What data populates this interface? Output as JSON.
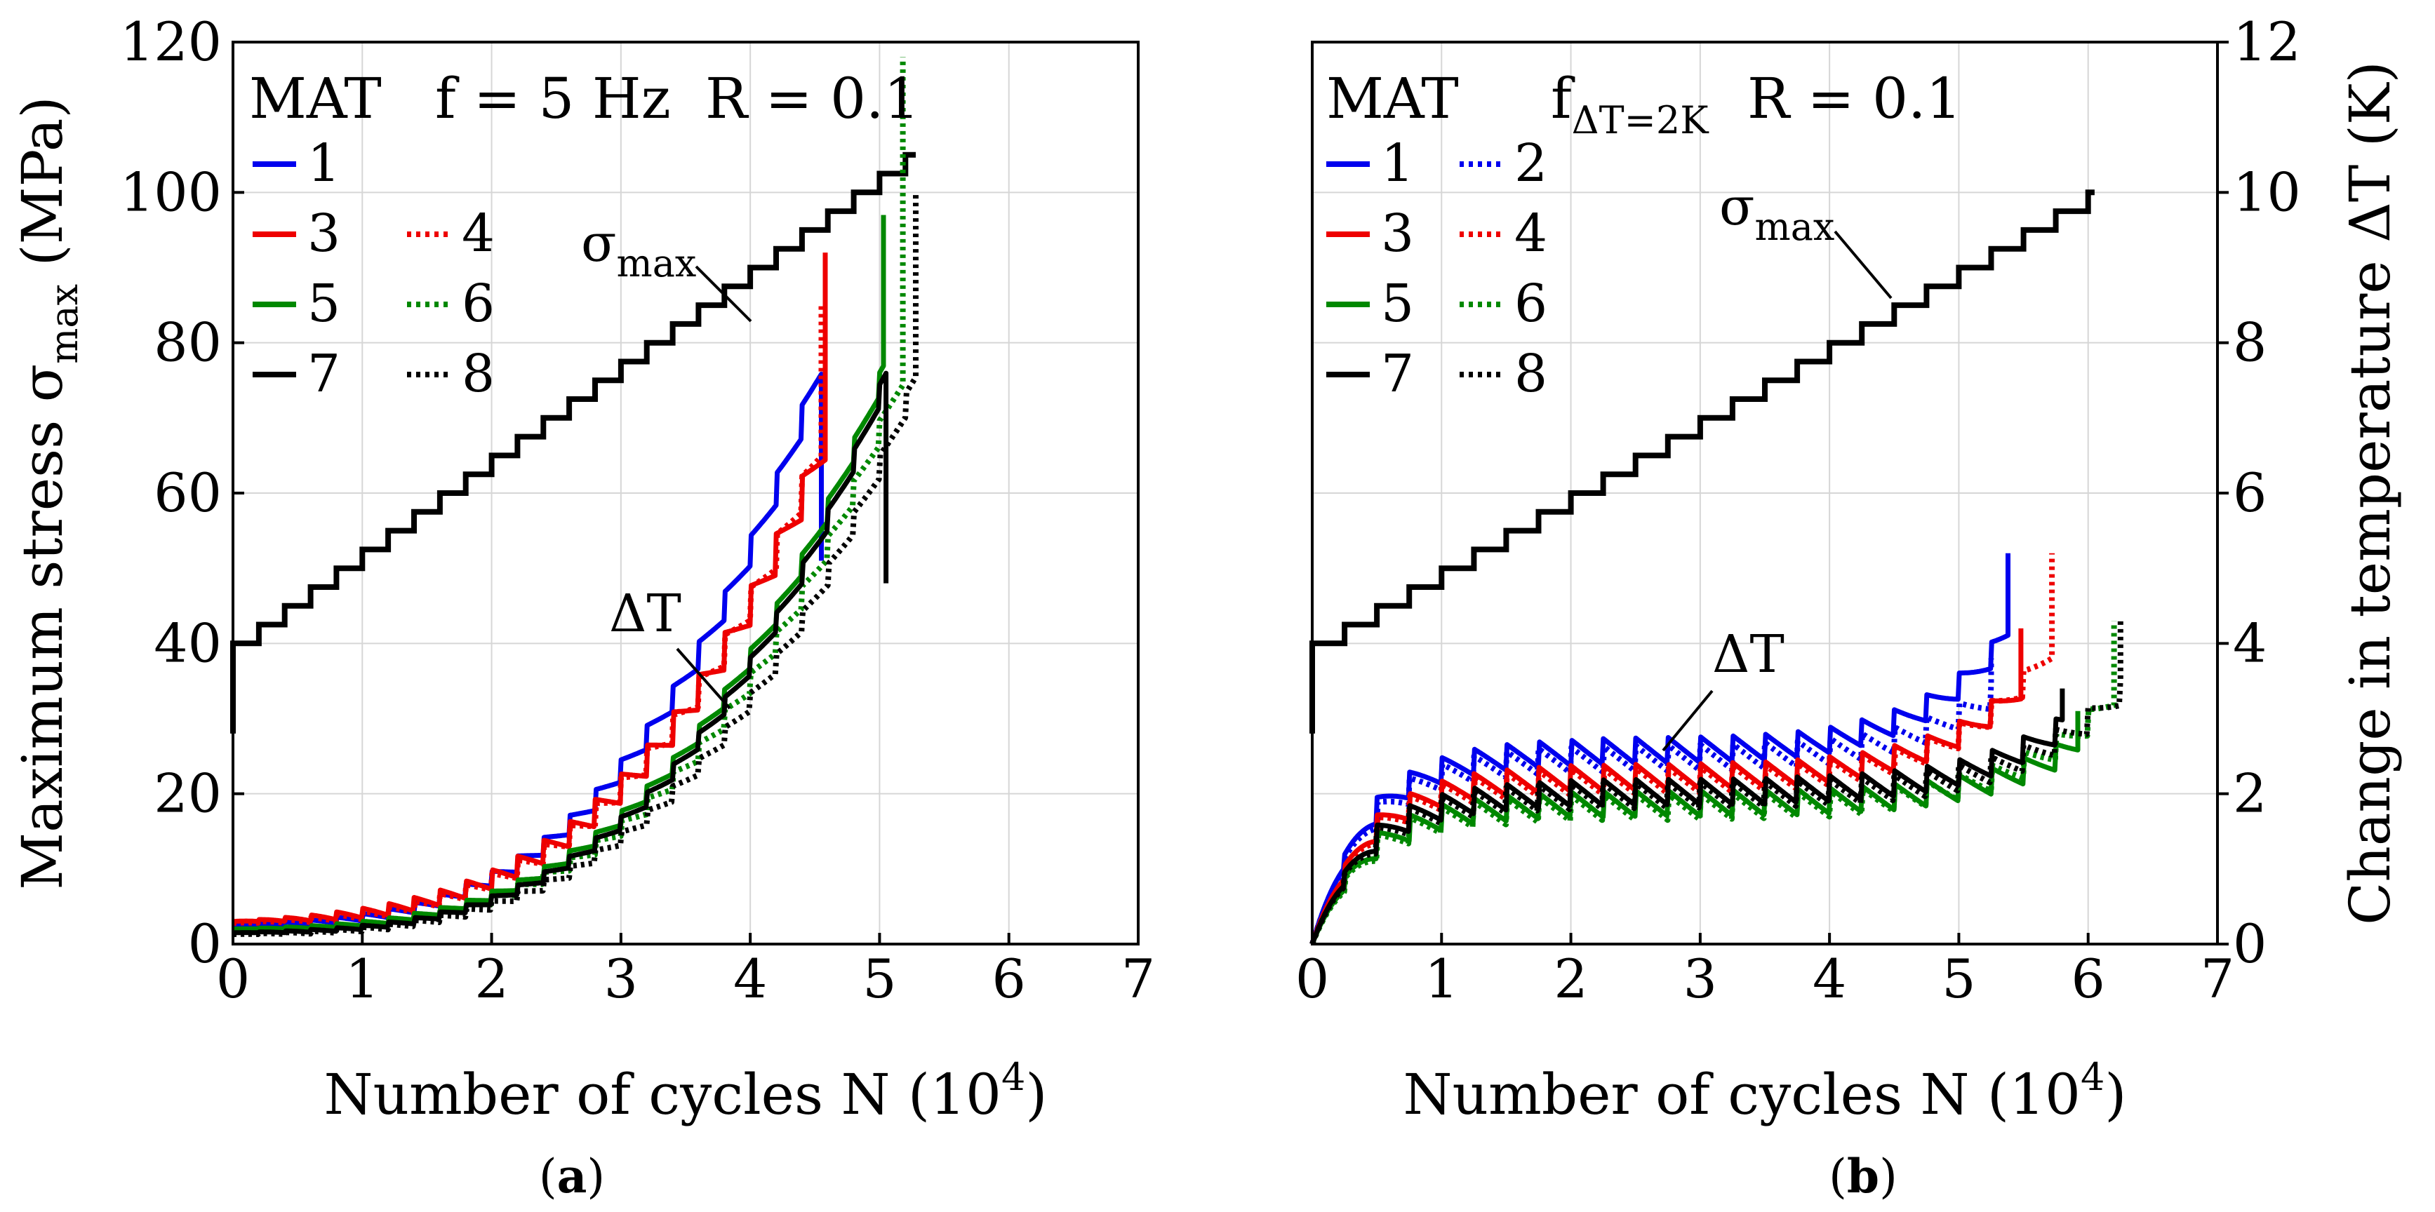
{
  "colors": {
    "1": "#0000ee",
    "2": "#0000ee",
    "3": "#ee0000",
    "4": "#ee0000",
    "5": "#008800",
    "6": "#008800",
    "7": "#000000",
    "8": "#000000"
  },
  "chart_data": [
    {
      "type": "line",
      "panel_label": "a",
      "legend_header": {
        "mat": "MAT",
        "f": "f = 5 Hz",
        "r": "R = 0.1"
      },
      "legend": [
        {
          "id": "1",
          "style": "solid"
        },
        {
          "id": "3",
          "style": "solid"
        },
        {
          "id": "4",
          "style": "dotted"
        },
        {
          "id": "5",
          "style": "solid"
        },
        {
          "id": "6",
          "style": "dotted"
        },
        {
          "id": "7",
          "style": "solid"
        },
        {
          "id": "8",
          "style": "dotted"
        }
      ],
      "xlabel": "Number of cycles N (10",
      "xlabel_sup": "4",
      "xlabel_end": ")",
      "ylabel": "Maximum stress σ",
      "ylabel_sub": "max",
      "ylabel_end": " (MPa)",
      "xlim": [
        0,
        7
      ],
      "ylim": [
        0,
        120
      ],
      "xticks": [
        "0",
        "1",
        "2",
        "3",
        "4",
        "5",
        "6",
        "7"
      ],
      "yticks": [
        "0",
        "20",
        "40",
        "60",
        "80",
        "100",
        "120"
      ],
      "annotations": {
        "sigma": "σ",
        "sigma_sub": "max",
        "dT": "ΔT"
      },
      "stress_steps": {
        "start": 40,
        "step": 2.5,
        "per_block": 0.2,
        "end_x": 5.28
      },
      "dT_end_scale": 10,
      "series": [
        {
          "name": "1",
          "style": "solid",
          "end": 4.55,
          "base": 2.5,
          "final": 51,
          "k": 1.9,
          "spike": 4.5
        },
        {
          "name": "3",
          "style": "solid",
          "end": 4.58,
          "base": 3.0,
          "final": 92,
          "k": 1.6,
          "spike": 6.0
        },
        {
          "name": "4",
          "style": "dotted",
          "end": 4.55,
          "base": 2.8,
          "final": 85,
          "k": 1.6,
          "spike": 5.0
        },
        {
          "name": "5",
          "style": "solid",
          "end": 5.03,
          "base": 2.0,
          "final": 97,
          "k": 1.9,
          "spike": 3.2
        },
        {
          "name": "6",
          "style": "dotted",
          "end": 5.18,
          "base": 1.8,
          "final": 118,
          "k": 1.9,
          "spike": 3.5
        },
        {
          "name": "7",
          "style": "solid",
          "end": 5.05,
          "base": 1.5,
          "final": 48,
          "k": 1.9,
          "spike": 3.0
        },
        {
          "name": "8",
          "style": "dotted",
          "end": 5.28,
          "base": 1.3,
          "final": 100,
          "k": 1.9,
          "spike": 3.2
        }
      ]
    },
    {
      "type": "line",
      "panel_label": "b",
      "legend_header": {
        "mat": "MAT",
        "f": "f",
        "f_sub": "ΔT=2K",
        "r": "R = 0.1"
      },
      "legend": [
        {
          "id": "1",
          "style": "solid"
        },
        {
          "id": "2",
          "style": "dotted"
        },
        {
          "id": "3",
          "style": "solid"
        },
        {
          "id": "4",
          "style": "dotted"
        },
        {
          "id": "5",
          "style": "solid"
        },
        {
          "id": "6",
          "style": "dotted"
        },
        {
          "id": "7",
          "style": "solid"
        },
        {
          "id": "8",
          "style": "dotted"
        }
      ],
      "xlabel": "Number of cycles N (10",
      "xlabel_sup": "4",
      "xlabel_end": ")",
      "ylabel": "Change in temperature ΔT (K)",
      "xlim": [
        0,
        7
      ],
      "ylim": [
        0,
        12
      ],
      "xticks": [
        "0",
        "1",
        "2",
        "3",
        "4",
        "5",
        "6",
        "7"
      ],
      "yticks": [
        "0",
        "2",
        "4",
        "6",
        "8",
        "10",
        "12"
      ],
      "annotations": {
        "sigma": "σ",
        "sigma_sub": "max",
        "dT": "ΔT"
      },
      "stress_steps": {
        "start": 4.0,
        "step": 0.25,
        "per_block": 0.25,
        "end_x": 6.05
      },
      "series": [
        {
          "name": "1",
          "style": "solid",
          "end": 5.38,
          "plateau": 2.4,
          "final": 5.2
        },
        {
          "name": "2",
          "style": "dotted",
          "end": 5.25,
          "plateau": 2.3,
          "final": 3.8
        },
        {
          "name": "3",
          "style": "solid",
          "end": 5.48,
          "plateau": 2.05,
          "final": 4.2
        },
        {
          "name": "4",
          "style": "dotted",
          "end": 5.72,
          "plateau": 2.0,
          "final": 5.2
        },
        {
          "name": "5",
          "style": "solid",
          "end": 5.92,
          "plateau": 1.7,
          "final": 3.1
        },
        {
          "name": "6",
          "style": "dotted",
          "end": 6.2,
          "plateau": 1.65,
          "final": 4.3
        },
        {
          "name": "7",
          "style": "solid",
          "end": 5.8,
          "plateau": 1.85,
          "final": 3.4
        },
        {
          "name": "8",
          "style": "dotted",
          "end": 6.25,
          "plateau": 1.8,
          "final": 4.3
        }
      ]
    }
  ]
}
